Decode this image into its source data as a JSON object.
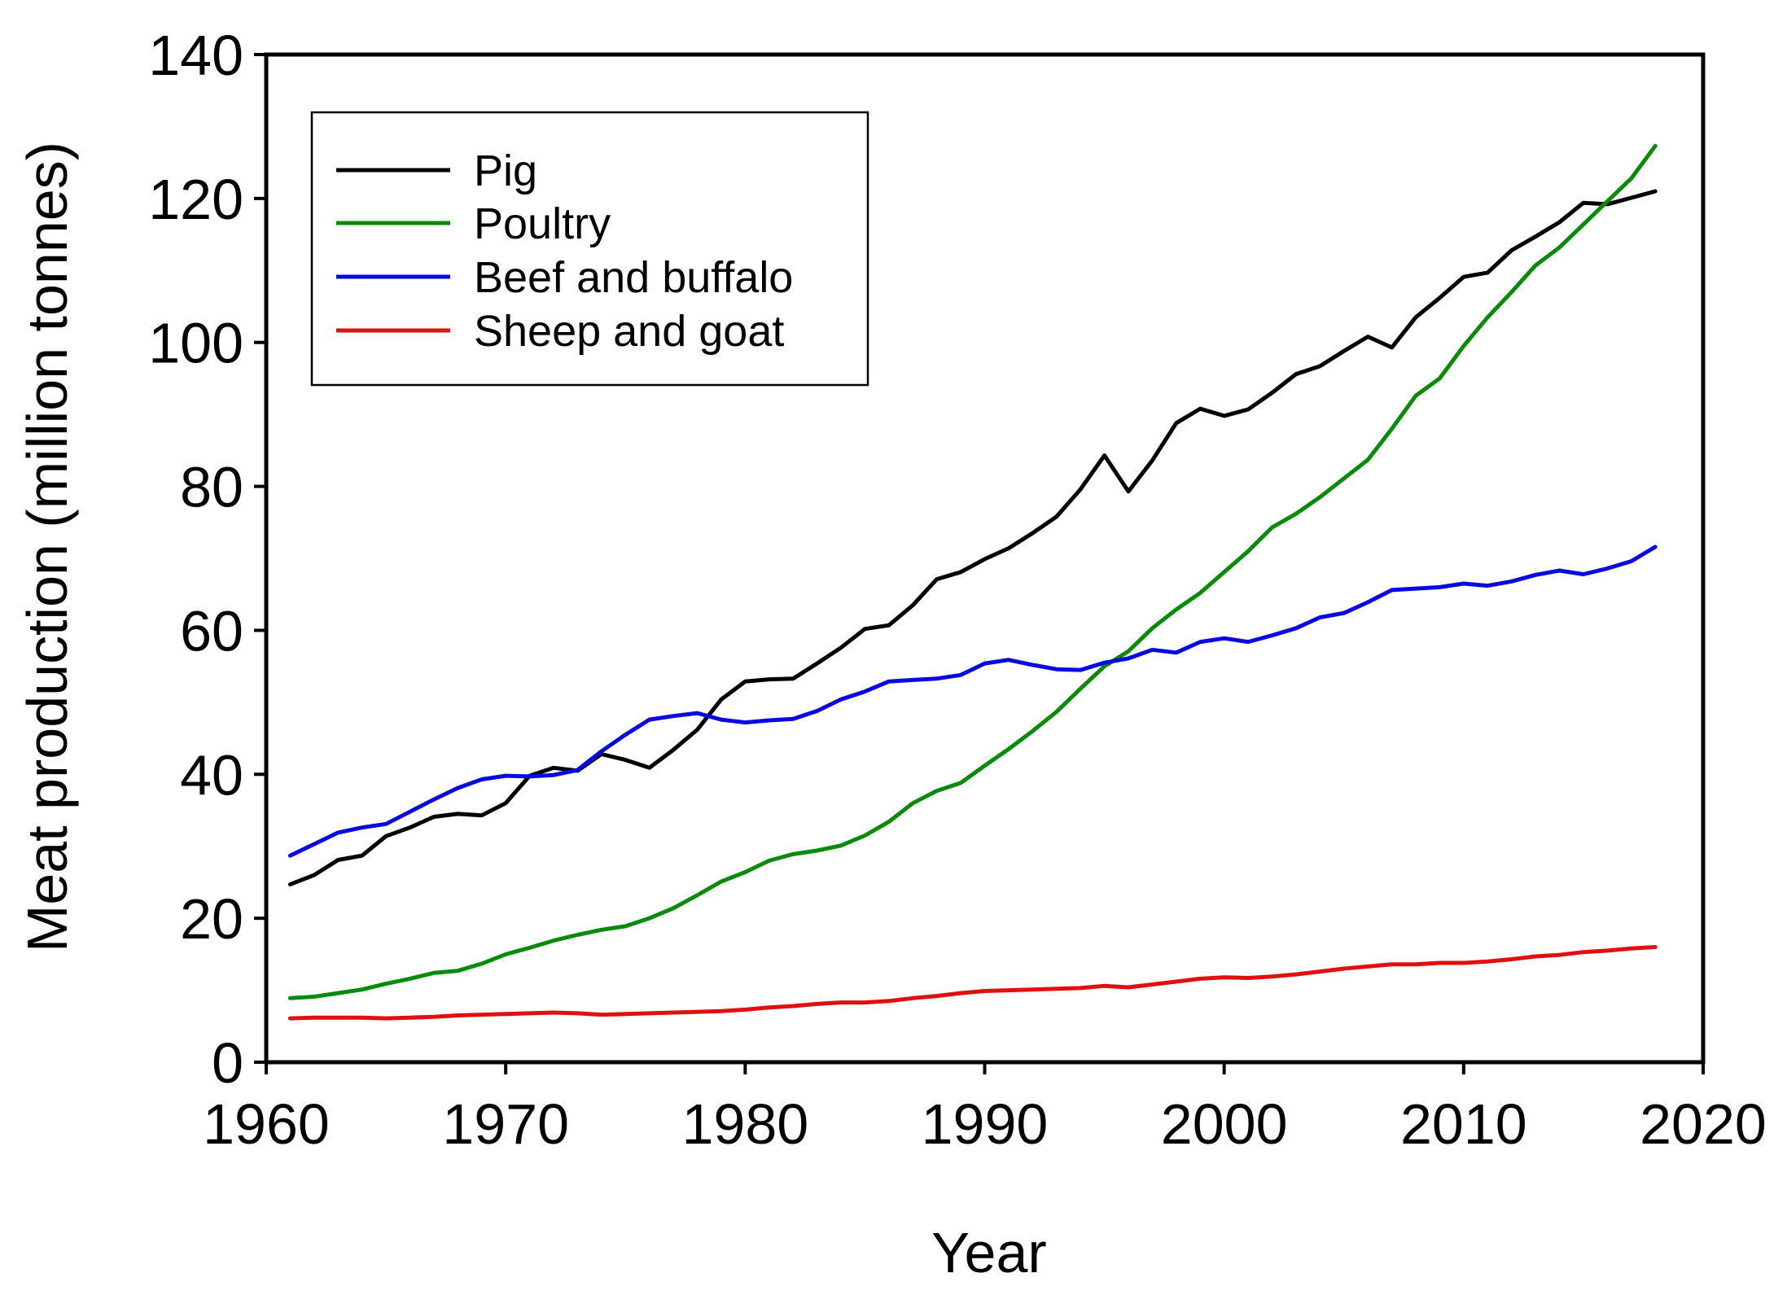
{
  "chart_data": {
    "type": "line",
    "title": "",
    "xlabel": "Year",
    "ylabel": "Meat production (million tonnes)",
    "xlim": [
      1960,
      2020
    ],
    "ylim": [
      0,
      140
    ],
    "xticks": [
      1960,
      1970,
      1980,
      1990,
      2000,
      2010,
      2020
    ],
    "yticks": [
      0,
      20,
      40,
      60,
      80,
      100,
      120,
      140
    ],
    "xtick_labels": [
      "1960",
      "1970",
      "1980",
      "1990",
      "2000",
      "2010",
      "2020"
    ],
    "ytick_labels": [
      "0",
      "20",
      "40",
      "60",
      "80",
      "100",
      "120",
      "140"
    ],
    "grid": false,
    "legend_position": "top-left",
    "x": [
      1961,
      1962,
      1963,
      1964,
      1965,
      1966,
      1967,
      1968,
      1969,
      1970,
      1971,
      1972,
      1973,
      1974,
      1975,
      1976,
      1977,
      1978,
      1979,
      1980,
      1981,
      1982,
      1983,
      1984,
      1985,
      1986,
      1987,
      1988,
      1989,
      1990,
      1991,
      1992,
      1993,
      1994,
      1995,
      1996,
      1997,
      1998,
      1999,
      2000,
      2001,
      2002,
      2003,
      2004,
      2005,
      2006,
      2007,
      2008,
      2009,
      2010,
      2011,
      2012,
      2013,
      2014,
      2015,
      2016,
      2017,
      2018
    ],
    "series": [
      {
        "name": "Pig",
        "color": "#000000",
        "values": [
          24.7,
          26.0,
          28.1,
          28.7,
          31.4,
          32.6,
          34.1,
          34.5,
          34.3,
          36.0,
          39.8,
          40.9,
          40.5,
          42.8,
          42.0,
          40.9,
          43.4,
          46.2,
          50.4,
          52.9,
          53.2,
          53.3,
          55.4,
          57.6,
          60.2,
          60.7,
          63.5,
          67.1,
          68.1,
          69.9,
          71.4,
          73.5,
          75.8,
          79.6,
          84.3,
          79.3,
          83.6,
          88.8,
          90.8,
          89.8,
          90.7,
          93.0,
          95.6,
          96.7,
          98.8,
          100.8,
          99.3,
          103.5,
          106.2,
          109.1,
          109.7,
          112.8,
          114.7,
          116.7,
          119.4,
          119.2,
          120.1,
          121.0
        ]
      },
      {
        "name": "Poultry",
        "color": "#0a8a0a",
        "values": [
          8.9,
          9.1,
          9.6,
          10.1,
          10.9,
          11.6,
          12.4,
          12.7,
          13.7,
          15.0,
          15.9,
          16.9,
          17.7,
          18.4,
          18.9,
          20.0,
          21.4,
          23.2,
          25.1,
          26.4,
          28.0,
          28.9,
          29.4,
          30.1,
          31.5,
          33.4,
          36.0,
          37.7,
          38.8,
          41.2,
          43.5,
          46.0,
          48.7,
          51.9,
          55.0,
          57.1,
          60.3,
          62.9,
          65.2,
          68.1,
          71.0,
          74.3,
          76.2,
          78.5,
          81.1,
          83.7,
          88.0,
          92.6,
          95.0,
          99.5,
          103.5,
          107.0,
          110.7,
          113.2,
          116.4,
          119.6,
          122.8,
          127.3
        ]
      },
      {
        "name": "Beef and buffalo",
        "color": "#0a0ae0",
        "values": [
          28.7,
          30.3,
          31.9,
          32.6,
          33.1,
          34.8,
          36.5,
          38.1,
          39.3,
          39.8,
          39.7,
          39.9,
          40.6,
          43.2,
          45.5,
          47.6,
          48.1,
          48.5,
          47.6,
          47.2,
          47.5,
          47.7,
          48.8,
          50.4,
          51.5,
          52.9,
          53.1,
          53.3,
          53.8,
          55.4,
          55.9,
          55.2,
          54.6,
          54.5,
          55.5,
          56.1,
          57.3,
          56.9,
          58.4,
          58.9,
          58.4,
          59.3,
          60.3,
          61.8,
          62.4,
          63.9,
          65.6,
          65.8,
          66.0,
          66.5,
          66.2,
          66.8,
          67.7,
          68.3,
          67.8,
          68.6,
          69.6,
          71.6
        ]
      },
      {
        "name": "Sheep and goat",
        "color": "#e01010",
        "values": [
          6.1,
          6.2,
          6.2,
          6.2,
          6.1,
          6.2,
          6.3,
          6.5,
          6.6,
          6.7,
          6.8,
          6.9,
          6.8,
          6.6,
          6.7,
          6.8,
          6.9,
          7.0,
          7.1,
          7.3,
          7.6,
          7.8,
          8.1,
          8.3,
          8.3,
          8.5,
          8.9,
          9.2,
          9.6,
          9.9,
          10.0,
          10.1,
          10.2,
          10.3,
          10.6,
          10.4,
          10.8,
          11.2,
          11.6,
          11.8,
          11.7,
          11.9,
          12.2,
          12.6,
          13.0,
          13.3,
          13.6,
          13.6,
          13.8,
          13.8,
          14.0,
          14.3,
          14.7,
          14.9,
          15.3,
          15.5,
          15.8,
          16.0
        ]
      }
    ]
  }
}
